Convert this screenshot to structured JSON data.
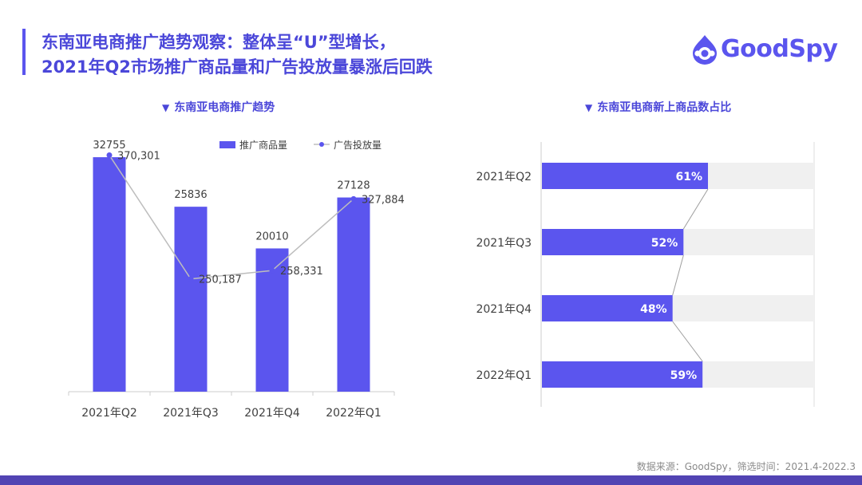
{
  "header": {
    "title_line1": "东南亚电商推广趋势观察：整体呈“U”型增长，",
    "title_line2": "2021年Q2市场推广商品量和广告投放量暴涨后回跌"
  },
  "logo": {
    "text": "GoodSpy",
    "icon": "goodspy-logo-icon",
    "color": "#5b55ee"
  },
  "footer": {
    "source": "数据来源：GoodSpy，筛选时间：2021.4-2022.3"
  },
  "colors": {
    "accent": "#5b55ee",
    "line": "#bdbdbd",
    "track": "#f0f0f0",
    "text": "#404040"
  },
  "chart_data": [
    {
      "type": "bar",
      "title": "东南亚电商推广趋势",
      "title_marker": "▼",
      "categories": [
        "2021年Q2",
        "2021年Q3",
        "2021年Q4",
        "2022年Q1"
      ],
      "legend_position": "top-right",
      "ylim": [
        0,
        38000
      ],
      "series": [
        {
          "name": "推广商品量",
          "type": "bar",
          "values": [
            32755,
            25836,
            20010,
            27128
          ],
          "labels": [
            "32755",
            "25836",
            "20010",
            "27128"
          ]
        },
        {
          "name": "广告投放量",
          "type": "line",
          "values": [
            370301,
            250187,
            258331,
            327884
          ],
          "labels": [
            "370,301",
            "250,187",
            "258,331",
            "327,884"
          ]
        }
      ],
      "y2lim": [
        140000,
        380000
      ],
      "grid": false
    },
    {
      "type": "bar",
      "orientation": "horizontal",
      "title": "东南亚电商新上商品数占比",
      "title_marker": "▼",
      "categories": [
        "2021年Q2",
        "2021年Q3",
        "2021年Q4",
        "2022年Q1"
      ],
      "values": [
        61,
        52,
        48,
        59
      ],
      "labels": [
        "61%",
        "52%",
        "48%",
        "59%"
      ],
      "xlim": [
        0,
        100
      ],
      "grid": false
    }
  ]
}
